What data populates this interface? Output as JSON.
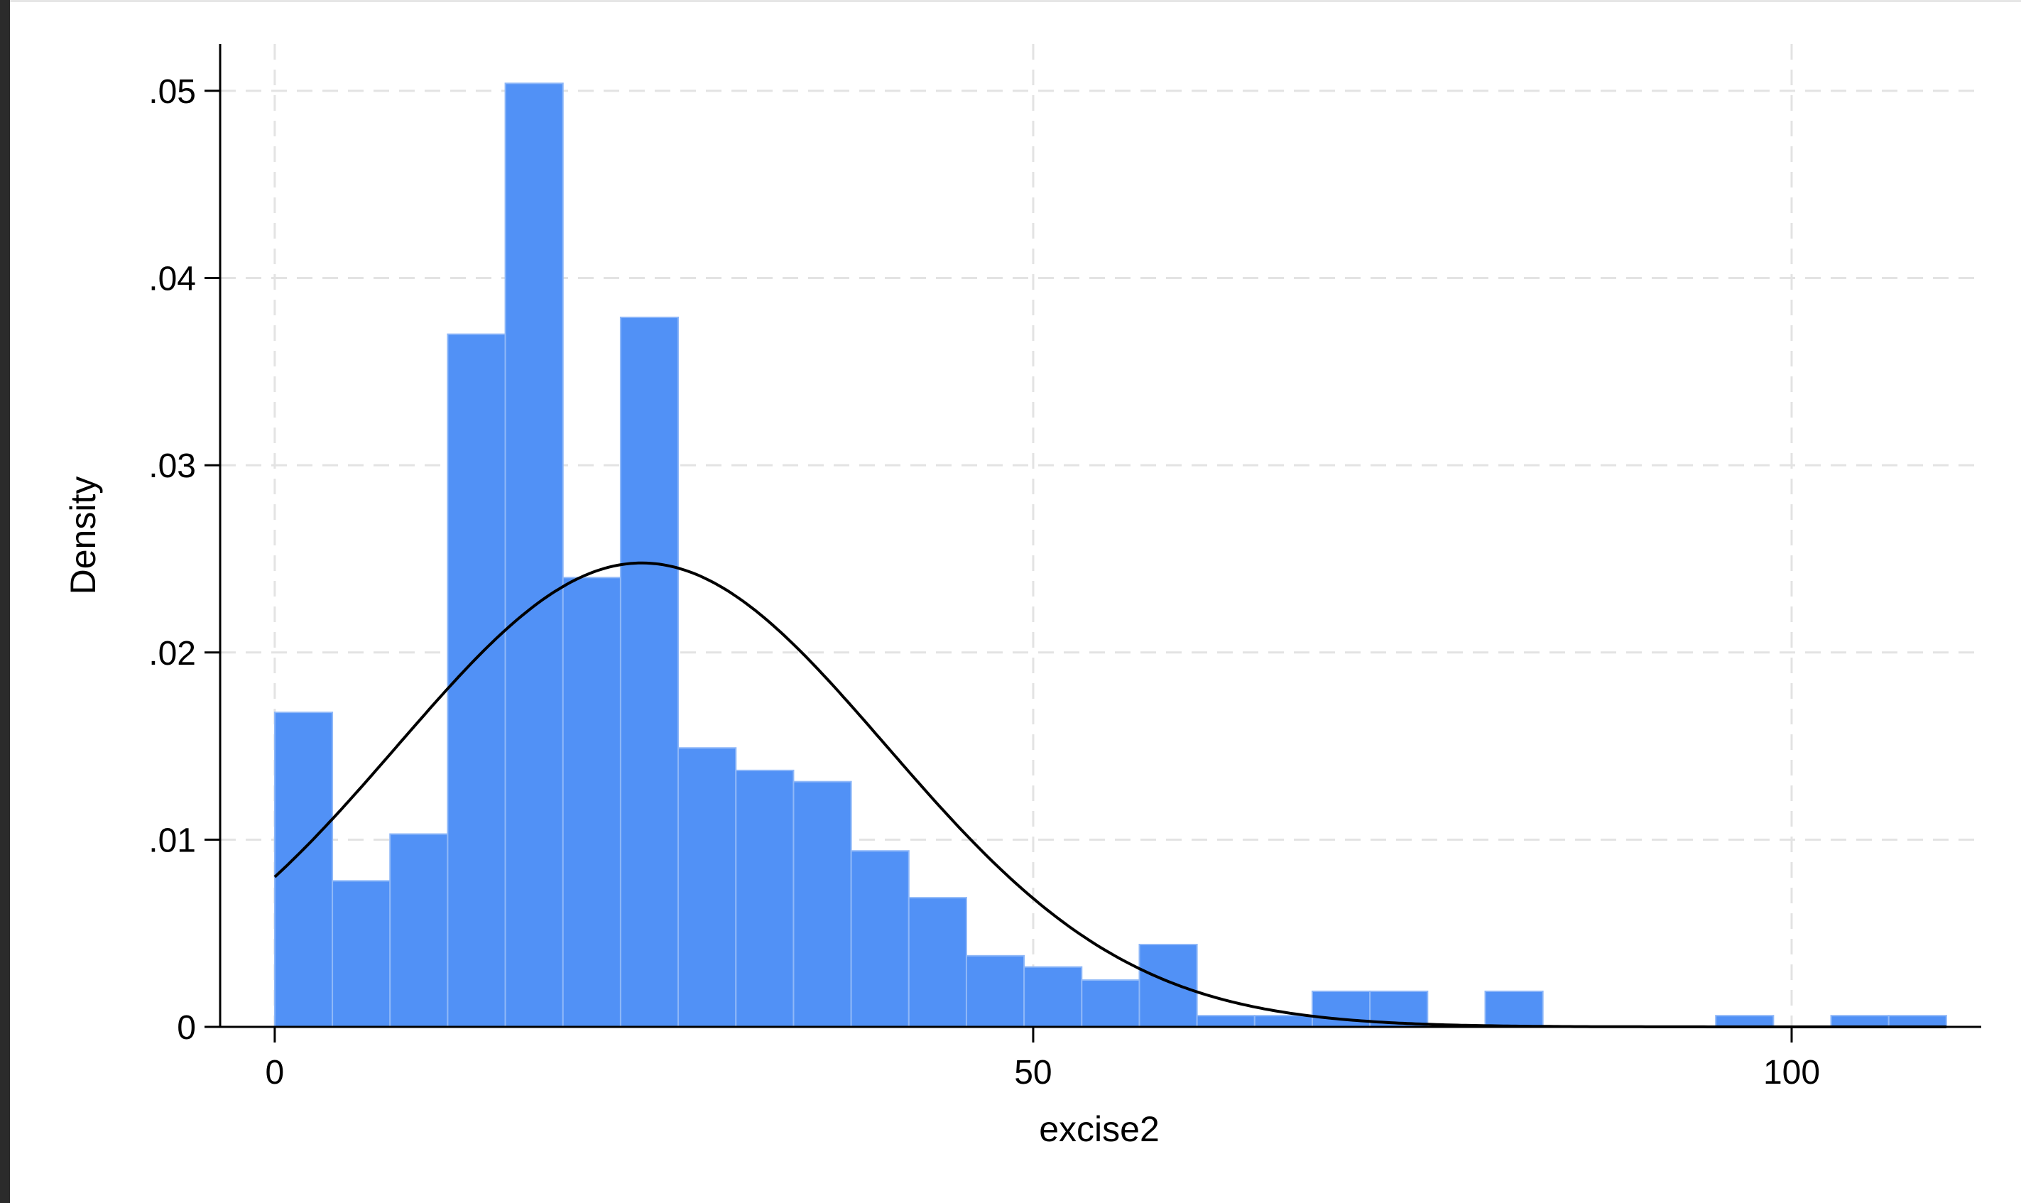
{
  "chart_data": {
    "type": "bar",
    "subtype": "histogram-with-normal-overlay",
    "xlabel": "excise2",
    "ylabel": "Density",
    "xlim": [
      -3.6,
      112.5
    ],
    "ylim": [
      0,
      0.0525
    ],
    "x_ticks": [
      {
        "value": 0,
        "label": "0"
      },
      {
        "value": 50,
        "label": "50"
      },
      {
        "value": 100,
        "label": "100"
      }
    ],
    "y_ticks": [
      {
        "value": 0,
        "label": "0"
      },
      {
        "value": 0.01,
        "label": ".01"
      },
      {
        "value": 0.02,
        "label": ".02"
      },
      {
        "value": 0.03,
        "label": ".03"
      },
      {
        "value": 0.04,
        "label": ".04"
      },
      {
        "value": 0.05,
        "label": ".05"
      }
    ],
    "bin_width": 3.8,
    "bins": [
      {
        "x0": 0.0,
        "x1": 3.8,
        "density": 0.0168
      },
      {
        "x0": 3.8,
        "x1": 7.6,
        "density": 0.0078
      },
      {
        "x0": 7.6,
        "x1": 11.4,
        "density": 0.0103
      },
      {
        "x0": 11.4,
        "x1": 15.2,
        "density": 0.037
      },
      {
        "x0": 15.2,
        "x1": 19.0,
        "density": 0.0504
      },
      {
        "x0": 19.0,
        "x1": 22.8,
        "density": 0.024
      },
      {
        "x0": 22.8,
        "x1": 26.6,
        "density": 0.0379
      },
      {
        "x0": 26.6,
        "x1": 30.4,
        "density": 0.0149
      },
      {
        "x0": 30.4,
        "x1": 34.2,
        "density": 0.0137
      },
      {
        "x0": 34.2,
        "x1": 38.0,
        "density": 0.0131
      },
      {
        "x0": 38.0,
        "x1": 41.8,
        "density": 0.0094
      },
      {
        "x0": 41.8,
        "x1": 45.6,
        "density": 0.0069
      },
      {
        "x0": 45.6,
        "x1": 49.4,
        "density": 0.0038
      },
      {
        "x0": 49.4,
        "x1": 53.2,
        "density": 0.0032
      },
      {
        "x0": 53.2,
        "x1": 57.0,
        "density": 0.0025
      },
      {
        "x0": 57.0,
        "x1": 60.8,
        "density": 0.0044
      },
      {
        "x0": 60.8,
        "x1": 64.6,
        "density": 0.0006
      },
      {
        "x0": 64.6,
        "x1": 68.4,
        "density": 0.0006
      },
      {
        "x0": 68.4,
        "x1": 72.2,
        "density": 0.0019
      },
      {
        "x0": 72.2,
        "x1": 76.0,
        "density": 0.0019
      },
      {
        "x0": 76.0,
        "x1": 79.8,
        "density": 0
      },
      {
        "x0": 79.8,
        "x1": 83.6,
        "density": 0.0019
      },
      {
        "x0": 83.6,
        "x1": 87.4,
        "density": 0
      },
      {
        "x0": 87.4,
        "x1": 91.2,
        "density": 0
      },
      {
        "x0": 91.2,
        "x1": 95.0,
        "density": 0
      },
      {
        "x0": 95.0,
        "x1": 98.8,
        "density": 0.0006
      },
      {
        "x0": 98.8,
        "x1": 102.6,
        "density": 0
      },
      {
        "x0": 102.6,
        "x1": 106.4,
        "density": 0.0006
      },
      {
        "x0": 106.4,
        "x1": 110.2,
        "density": 0.0006
      }
    ],
    "normal_overlay": {
      "mean": 24.2,
      "sd": 16.1,
      "x_range": [
        0,
        110.2
      ]
    },
    "grid": true,
    "colors": {
      "bar_fill": "#5191f6",
      "bar_edge": "#8fb8f8",
      "curve": "#000000",
      "grid": "#e3e3e3"
    }
  }
}
